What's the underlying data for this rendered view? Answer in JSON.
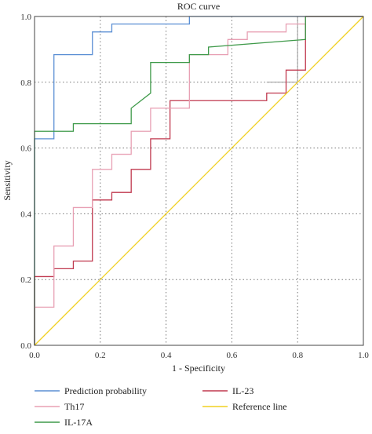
{
  "chart_data": {
    "type": "line",
    "title": "ROC curve",
    "xlabel": "1 - Specificity",
    "ylabel": "Sensitivity",
    "xlim": [
      0,
      1
    ],
    "ylim": [
      0,
      1
    ],
    "x_ticks": [
      "0.0",
      "0.2",
      "0.4",
      "0.6",
      "0.8",
      "1.0"
    ],
    "y_ticks": [
      "0.0",
      "0.2",
      "0.4",
      "0.6",
      "0.8",
      "1.0"
    ],
    "grid": true,
    "legend_position": "bottom",
    "series": [
      {
        "name": "Prediction probability",
        "color": "#5b8fd4",
        "x": [
          0,
          0,
          0.059,
          0.059,
          0.059,
          0.118,
          0.176,
          0.176,
          0.235,
          0.235,
          0.294,
          0.471,
          0.471,
          1.0
        ],
        "y": [
          0,
          0.628,
          0.628,
          0.884,
          0.884,
          0.884,
          0.884,
          0.953,
          0.953,
          0.977,
          0.977,
          0.977,
          1.0,
          1.0
        ]
      },
      {
        "name": "IL-23",
        "color": "#c0394f",
        "x": [
          0,
          0,
          0.059,
          0.059,
          0.118,
          0.118,
          0.176,
          0.176,
          0.235,
          0.235,
          0.294,
          0.294,
          0.353,
          0.353,
          0.412,
          0.412,
          0.471,
          0.471,
          0.529,
          0.529,
          0.588,
          0.588,
          0.706,
          0.706,
          0.765,
          0.765,
          0.824,
          0.824,
          1.0
        ],
        "y": [
          0,
          0.209,
          0.209,
          0.233,
          0.233,
          0.256,
          0.256,
          0.442,
          0.442,
          0.465,
          0.465,
          0.535,
          0.535,
          0.628,
          0.628,
          0.744,
          0.744,
          0.744,
          0.744,
          0.744,
          0.744,
          0.744,
          0.744,
          0.767,
          0.767,
          0.837,
          0.837,
          1.0,
          1.0
        ]
      },
      {
        "name": "Th17",
        "color": "#e8a0b4",
        "x": [
          0,
          0,
          0.059,
          0.059,
          0.118,
          0.118,
          0.176,
          0.176,
          0.235,
          0.235,
          0.294,
          0.294,
          0.353,
          0.353,
          0.412,
          0.412,
          0.471,
          0.471,
          0.588,
          0.588,
          0.647,
          0.647,
          0.706,
          0.706,
          0.765,
          0.765,
          0.824,
          0.824,
          1.0
        ],
        "y": [
          0,
          0.116,
          0.116,
          0.302,
          0.302,
          0.419,
          0.419,
          0.535,
          0.535,
          0.581,
          0.581,
          0.651,
          0.651,
          0.721,
          0.721,
          0.721,
          0.721,
          0.884,
          0.884,
          0.93,
          0.93,
          0.953,
          0.953,
          0.953,
          0.953,
          0.977,
          0.977,
          1.0,
          1.0
        ]
      },
      {
        "name": "IL-17A",
        "color": "#3f9a4a",
        "x": [
          0,
          0,
          0.059,
          0.059,
          0.118,
          0.118,
          0.294,
          0.294,
          0.353,
          0.353,
          0.471,
          0.471,
          0.529,
          0.529,
          0.824,
          0.824,
          1.0
        ],
        "y": [
          0,
          0.651,
          0.651,
          0.651,
          0.651,
          0.674,
          0.674,
          0.721,
          0.767,
          0.86,
          0.86,
          0.884,
          0.884,
          0.907,
          0.93,
          1.0,
          1.0
        ]
      },
      {
        "name": "Reference line",
        "color": "#f0d020",
        "x": [
          0,
          1
        ],
        "y": [
          0,
          1
        ]
      }
    ],
    "reference_marks": [
      {
        "x": [
          0.8,
          0.8
        ],
        "y": [
          0.8,
          1.0
        ],
        "color": "#9a9a9a"
      },
      {
        "x": [
          0.706,
          0.8
        ],
        "y": [
          0.8,
          0.8
        ],
        "color": "#9a9a9a"
      }
    ],
    "legend": [
      {
        "label": "Prediction probability",
        "color": "#5b8fd4"
      },
      {
        "label": "IL-23",
        "color": "#c0394f"
      },
      {
        "label": "Th17",
        "color": "#e8a0b4"
      },
      {
        "label": "Reference line",
        "color": "#f0d020"
      },
      {
        "label": "IL-17A",
        "color": "#3f9a4a"
      }
    ]
  }
}
